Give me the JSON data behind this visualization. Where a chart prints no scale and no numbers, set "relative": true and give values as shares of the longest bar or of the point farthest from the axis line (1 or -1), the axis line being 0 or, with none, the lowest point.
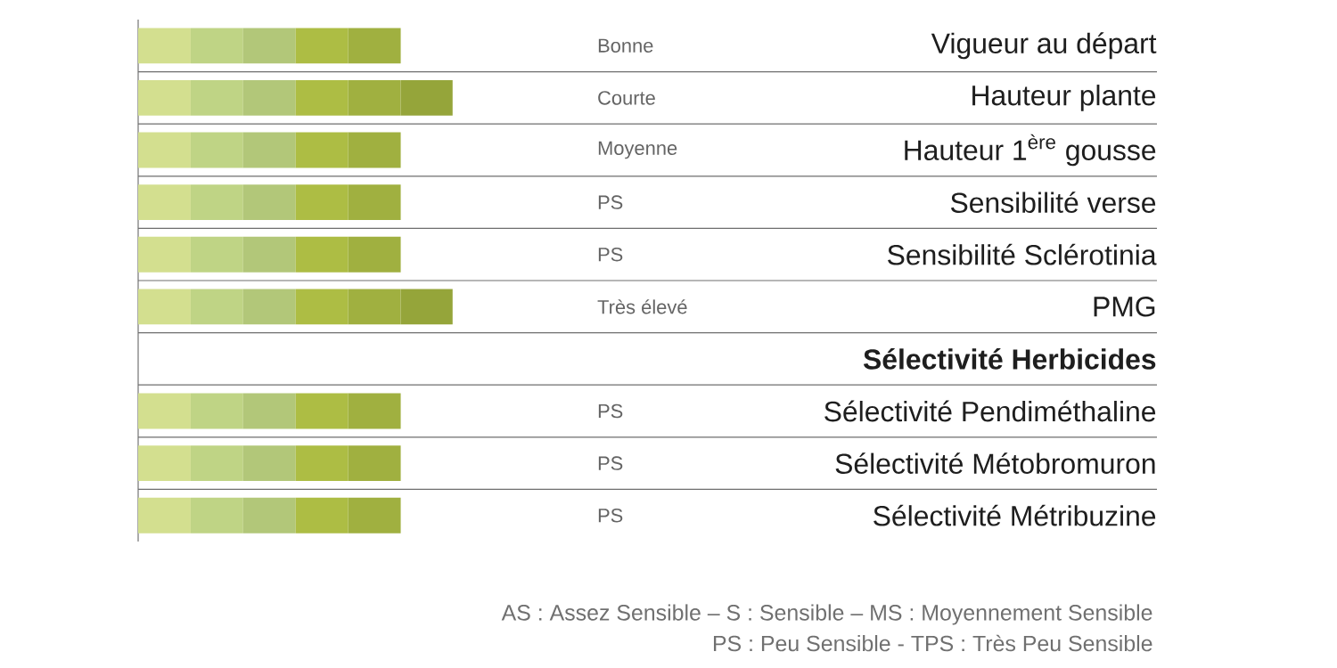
{
  "chart_data": {
    "type": "bar",
    "orientation": "horizontal",
    "stacked": true,
    "relative": true,
    "grid": "y",
    "categories": [
      "Vigueur au départ",
      "Hauteur plante",
      "Hauteur 1$^{ère}$ gousse",
      "Sensibilité verse",
      "Sensibilité Sclérotinia",
      "PMG",
      "Sélectivité Herbicides",
      "Sélectivité Pendiméthaline",
      "Sélectivité Métobromuron",
      "Sélectivité Métribuzine"
    ],
    "series": [
      {
        "color": "#d3df8f",
        "values": [
          0.167,
          0.167,
          0.167,
          0.167,
          0.167,
          0.167,
          null,
          0.167,
          0.167,
          0.167
        ]
      },
      {
        "color": "#bfd485",
        "values": [
          0.167,
          0.167,
          0.167,
          0.167,
          0.167,
          0.167,
          null,
          0.167,
          0.167,
          0.167
        ]
      },
      {
        "color": "#b2c779",
        "values": [
          0.167,
          0.167,
          0.167,
          0.167,
          0.167,
          0.167,
          null,
          0.167,
          0.167,
          0.167
        ]
      },
      {
        "color": "#adbd44",
        "values": [
          0.167,
          0.167,
          0.167,
          0.167,
          0.167,
          0.167,
          null,
          0.167,
          0.167,
          0.167
        ]
      },
      {
        "color": "#a0b040",
        "values": [
          0.167,
          0.167,
          0.167,
          0.167,
          0.167,
          0.167,
          null,
          0.167,
          0.167,
          0.167
        ]
      },
      {
        "color": "#95a53a",
        "values": [
          null,
          0.165,
          null,
          null,
          null,
          0.165,
          null,
          null,
          null,
          null
        ]
      }
    ],
    "annotations": [
      "Bonne",
      "Courte",
      "Moyenne",
      "PS",
      "PS",
      "Très élevé",
      "PS",
      "PS",
      "PS",
      "AS : Assez Sensible –  S : Sensible – MS : Moyennement Sensible",
      "PS : Peu Sensible - TPS : Très Peu Sensible"
    ]
  }
}
